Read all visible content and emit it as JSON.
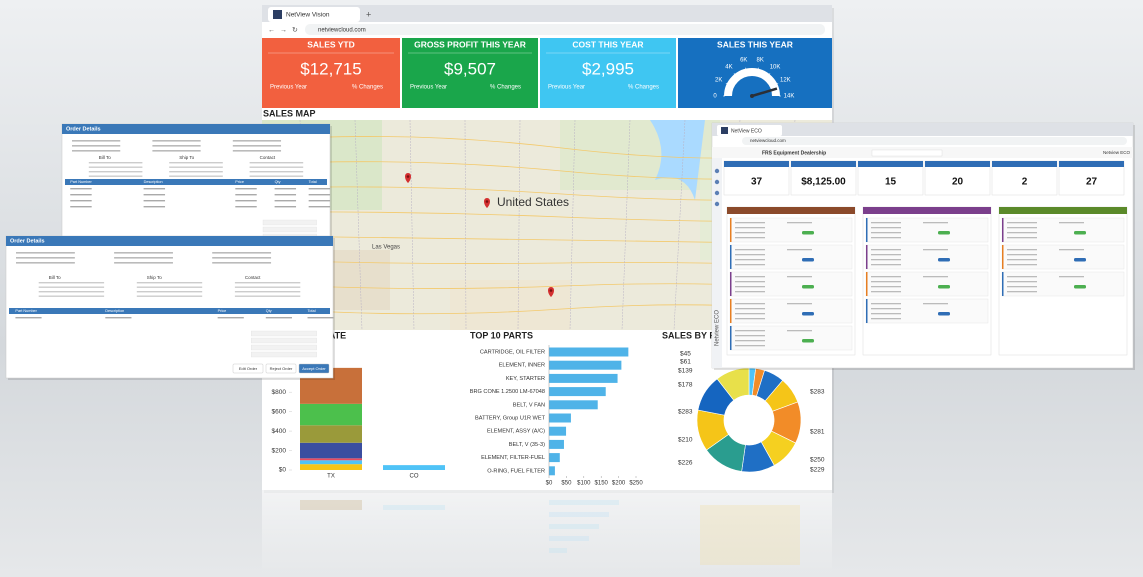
{
  "browser": {
    "tab": "NetView Vision",
    "url": "netviewcloud.com"
  },
  "kpis": [
    {
      "title": "SALES YTD",
      "value": "$12,715",
      "left": "Previous Year",
      "right": "% Changes",
      "color": "#f2603f"
    },
    {
      "title": "GROSS PROFIT THIS YEAR",
      "value": "$9,507",
      "left": "Previous Year",
      "right": "% Changes",
      "color": "#1aa64b"
    },
    {
      "title": "COST THIS YEAR",
      "value": "$2,995",
      "left": "Previous Year",
      "right": "% Changes",
      "color": "#3fc6f2"
    }
  ],
  "map": {
    "title": "SALES MAP",
    "label": "United States",
    "place": "Las Vegas"
  },
  "chart_data": [
    {
      "type": "gauge",
      "title": "SALES THIS YEAR",
      "color": "#1670c0",
      "ylim": [
        0,
        14000
      ],
      "yticks": [
        0,
        {
          "value": 2000,
          "label": "2K"
        },
        {
          "value": 4000,
          "label": "4K"
        },
        {
          "value": 6000,
          "label": "6K"
        },
        {
          "value": 8000,
          "label": "8K"
        },
        {
          "value": 10000,
          "label": "10K"
        },
        {
          "value": 12000,
          "label": "12K"
        },
        {
          "value": 14000,
          "label": "14K"
        }
      ],
      "value": 12715
    },
    {
      "type": "stacked_bar",
      "title": "STATE",
      "categories": [
        "TX",
        "CO"
      ],
      "ylim": [
        0,
        1100
      ],
      "yticks": [
        {
          "value": 0,
          "label": "$0"
        },
        {
          "value": 200,
          "label": "$200"
        },
        {
          "value": 400,
          "label": "$400"
        },
        {
          "value": 600,
          "label": "$600"
        },
        {
          "value": 800,
          "label": "$800"
        }
      ],
      "series": [
        {
          "color": "#f5c518",
          "values": [
            60,
            0
          ]
        },
        {
          "color": "#4fc3f7",
          "values": [
            40,
            50
          ]
        },
        {
          "color": "#e84a5f",
          "values": [
            20,
            0
          ]
        },
        {
          "color": "#3a4ea0",
          "values": [
            160,
            0
          ]
        },
        {
          "color": "#9a9a3a",
          "values": [
            180,
            0
          ]
        },
        {
          "color": "#4cc04c",
          "values": [
            220,
            0
          ]
        },
        {
          "color": "#c8703a",
          "values": [
            370,
            0
          ]
        }
      ]
    },
    {
      "type": "hbar",
      "title": "TOP 10 PARTS",
      "color": "#4fb3e8",
      "categories": [
        "CARTRIDGE, OIL FILTER",
        "ELEMENT, INNER",
        "KEY, STARTER",
        "BRG CONE 1.2500 LM-67048",
        "BELT, V FAN",
        "BATTERY, Group U1R WET",
        "ELEMENT, ASSY (A/C)",
        "BELT, V (35-3)",
        "ELEMENT, FILTER-FUEL",
        "O-RING, FUEL FILTER"
      ],
      "values": [
        228,
        208,
        197,
        163,
        140,
        63,
        49,
        43,
        31,
        17
      ],
      "xlim": [
        0,
        250
      ],
      "xticks": [
        {
          "value": 0,
          "label": "$0"
        },
        {
          "value": 50,
          "label": "$50"
        },
        {
          "value": 100,
          "label": "$100"
        },
        {
          "value": 150,
          "label": "$150"
        },
        {
          "value": 200,
          "label": "$200"
        },
        {
          "value": 250,
          "label": "$250"
        }
      ]
    },
    {
      "type": "donut",
      "title": "SALES BY PA",
      "values": [
        45,
        61,
        139,
        178,
        283,
        210,
        226,
        283,
        281,
        250,
        229
      ],
      "value_labels": [
        "$45",
        "$61",
        "$139",
        "$178",
        "$283",
        "$210",
        "$226",
        "$283",
        "$281",
        "$250",
        "$229"
      ],
      "colors": [
        "#4fc3f7",
        "#f28c28",
        "#1f6fc5",
        "#f5c518",
        "#f28c28",
        "#f5d020",
        "#1f6fc5",
        "#2a9d8f",
        "#f5c518",
        "#1565c0",
        "#e8e04a"
      ]
    }
  ],
  "orders": [
    {
      "title": "Order Details",
      "sections": [
        "Bill To",
        "Ship To",
        "Contact"
      ],
      "columns": [
        "Part Number",
        "Description",
        "Price",
        "Qty",
        "Total"
      ]
    },
    {
      "title": "Order Details",
      "sections": [
        "Bill To",
        "Ship To",
        "Contact"
      ],
      "columns": [
        "Part Number",
        "Description",
        "Price",
        "Qty",
        "Total"
      ],
      "buttons": [
        "Edit Order",
        "Reject Order",
        "Accept Order"
      ]
    }
  ],
  "eco": {
    "tab": "NetView ECO",
    "url": "netviewcloud.com",
    "title": "FRS Equipment Dealership",
    "brand": "Netview ECO",
    "stats": [
      37,
      "$8,125.00",
      15,
      20,
      2,
      27
    ]
  }
}
